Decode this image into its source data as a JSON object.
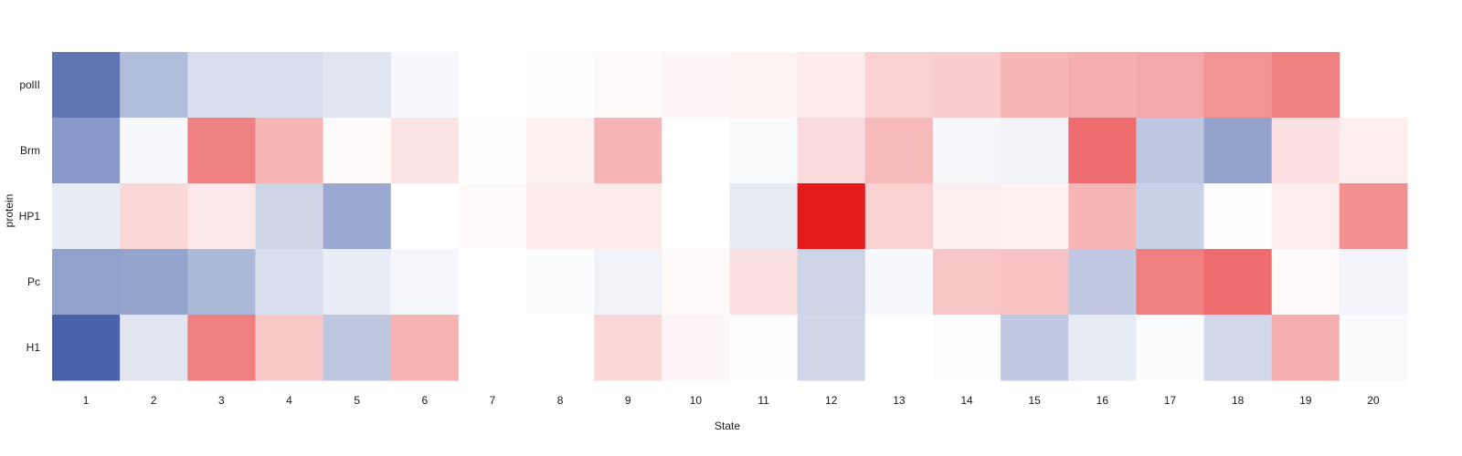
{
  "chart_data": {
    "type": "heatmap",
    "title": "",
    "xlabel": "State",
    "ylabel": "protein",
    "x": [
      "1",
      "2",
      "3",
      "4",
      "5",
      "6",
      "7",
      "8",
      "9",
      "10",
      "11",
      "12",
      "13",
      "14",
      "15",
      "16",
      "17",
      "18",
      "19",
      "20"
    ],
    "y": [
      "polII",
      "Brm",
      "HP1",
      "Pc",
      "H1"
    ],
    "colorscale": {
      "min_color": "#3f5aa4",
      "mid_color": "#ffffff",
      "max_color": "#e41a1c",
      "min": -1,
      "max": 1
    },
    "z": [
      [
        -0.83,
        -0.4,
        -0.2,
        -0.2,
        -0.16,
        -0.04,
        0.0,
        0.01,
        0.02,
        0.04,
        0.05,
        0.09,
        0.2,
        0.22,
        0.32,
        0.35,
        0.38,
        0.47,
        0.56,
        null
      ],
      [
        -0.62,
        -0.04,
        0.55,
        0.32,
        0.02,
        0.12,
        0.01,
        0.06,
        0.32,
        0.0,
        -0.03,
        0.16,
        0.3,
        -0.05,
        -0.08,
        0.64,
        -0.34,
        -0.56,
        0.13,
        0.08
      ],
      [
        -0.12,
        0.17,
        0.1,
        -0.25,
        -0.52,
        0.0,
        0.02,
        0.09,
        0.09,
        0.0,
        -0.13,
        1.0,
        0.2,
        0.07,
        0.06,
        0.32,
        -0.28,
        -0.01,
        0.08,
        0.49
      ],
      [
        -0.57,
        -0.55,
        -0.43,
        -0.2,
        -0.11,
        -0.05,
        0.0,
        -0.02,
        -0.08,
        0.02,
        0.13,
        -0.26,
        -0.04,
        0.25,
        0.26,
        -0.33,
        0.56,
        0.64,
        0.02,
        -0.06
      ],
      [
        -0.95,
        -0.16,
        0.56,
        0.24,
        -0.34,
        0.33,
        0.0,
        0.0,
        0.17,
        0.04,
        0.01,
        -0.24,
        0.0,
        -0.01,
        -0.33,
        -0.13,
        -0.02,
        -0.23,
        0.35,
        -0.03
      ]
    ]
  }
}
